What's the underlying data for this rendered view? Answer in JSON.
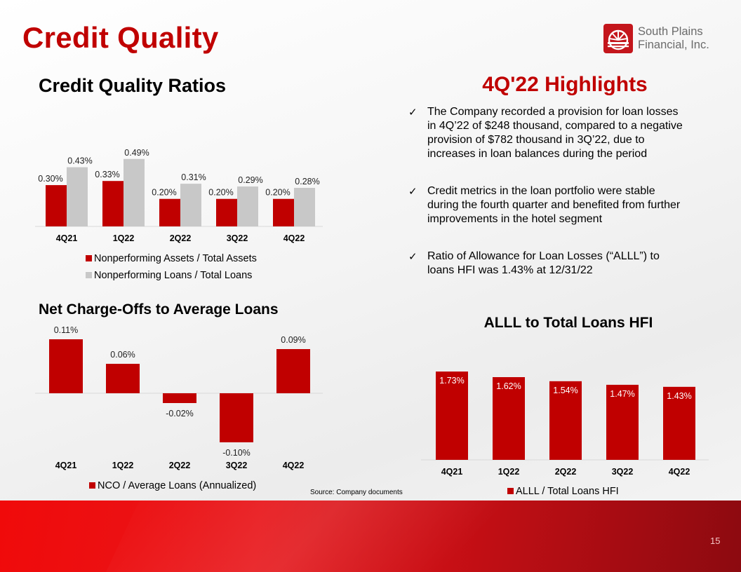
{
  "title": "Credit Quality",
  "logo": {
    "line1": "South Plains",
    "line2": "Financial, Inc."
  },
  "highlights": {
    "title": "4Q'22 Highlights",
    "bullets": [
      {
        "lines": [
          "The Company recorded a provision for loan losses",
          "in 4Q’22 of $248 thousand, compared to a negative",
          "provision of $782 thousand in 3Q’22, due to",
          "increases in loan balances during the period"
        ]
      },
      {
        "lines": [
          "Credit metrics in the loan portfolio were stable",
          "during the fourth quarter and benefited from further",
          "improvements in the hotel segment"
        ]
      },
      {
        "lines": [
          "Ratio of Allowance for Loan Losses (“ALLL”) to",
          "loans HFI was 1.43% at 12/31/22"
        ]
      }
    ]
  },
  "source": "Source: Company documents",
  "page_number": "15",
  "colors": {
    "accent": "#c00000",
    "bar_red": "#c00000",
    "bar_gray": "#c8c8c8"
  },
  "chart_data": [
    {
      "id": "credit-quality-ratios",
      "type": "bar",
      "title": "Credit Quality Ratios",
      "categories": [
        "4Q21",
        "1Q22",
        "2Q22",
        "3Q22",
        "4Q22"
      ],
      "series": [
        {
          "name": "Nonperforming Assets / Total Assets",
          "values": [
            0.3,
            0.33,
            0.2,
            0.2,
            0.2
          ],
          "labels": [
            "0.30%",
            "0.33%",
            "0.20%",
            "0.20%",
            "0.20%"
          ],
          "color": "#c00000"
        },
        {
          "name": "Nonperforming Loans / Total Loans",
          "values": [
            0.43,
            0.49,
            0.31,
            0.29,
            0.28
          ],
          "labels": [
            "0.43%",
            "0.49%",
            "0.31%",
            "0.29%",
            "0.28%"
          ],
          "color": "#c8c8c8"
        }
      ],
      "ylim": [
        0,
        0.55
      ],
      "legend": "bottom"
    },
    {
      "id": "net-charge-offs",
      "type": "bar",
      "title": "Net Charge-Offs to Average Loans",
      "categories": [
        "4Q21",
        "1Q22",
        "2Q22",
        "3Q22",
        "4Q22"
      ],
      "series": [
        {
          "name": "NCO / Average Loans (Annualized)",
          "values": [
            0.11,
            0.06,
            -0.02,
            -0.1,
            0.09
          ],
          "labels": [
            "0.11%",
            "0.06%",
            "-0.02%",
            "-0.10%",
            "0.09%"
          ],
          "color": "#c00000"
        }
      ],
      "ylim": [
        -0.1,
        0.11
      ],
      "legend": "bottom"
    },
    {
      "id": "alll-total-loans",
      "type": "bar",
      "title": "ALLL to Total Loans HFI",
      "categories": [
        "4Q21",
        "1Q22",
        "2Q22",
        "3Q22",
        "4Q22"
      ],
      "series": [
        {
          "name": "ALLL / Total Loans HFI",
          "values": [
            1.73,
            1.62,
            1.54,
            1.47,
            1.43
          ],
          "labels": [
            "1.73%",
            "1.62%",
            "1.54%",
            "1.47%",
            "1.43%"
          ],
          "color": "#c00000"
        }
      ],
      "ylim": [
        0,
        1.73
      ],
      "legend": "bottom"
    }
  ]
}
